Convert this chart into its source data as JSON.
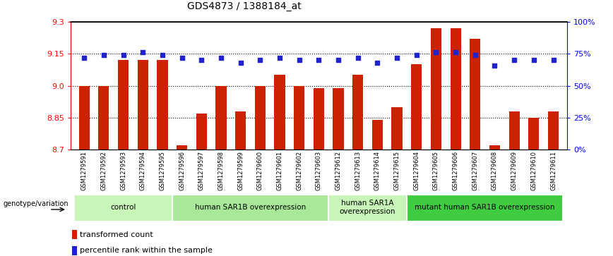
{
  "title": "GDS4873 / 1388184_at",
  "samples": [
    "GSM1279591",
    "GSM1279592",
    "GSM1279593",
    "GSM1279594",
    "GSM1279595",
    "GSM1279596",
    "GSM1279597",
    "GSM1279598",
    "GSM1279599",
    "GSM1279600",
    "GSM1279601",
    "GSM1279602",
    "GSM1279603",
    "GSM1279612",
    "GSM1279613",
    "GSM1279614",
    "GSM1279615",
    "GSM1279604",
    "GSM1279605",
    "GSM1279606",
    "GSM1279607",
    "GSM1279608",
    "GSM1279609",
    "GSM1279610",
    "GSM1279611"
  ],
  "bar_values": [
    9.0,
    9.0,
    9.12,
    9.12,
    9.12,
    8.72,
    8.87,
    9.0,
    8.88,
    9.0,
    9.05,
    9.0,
    8.99,
    8.99,
    9.05,
    8.84,
    8.9,
    9.1,
    9.27,
    9.27,
    9.22,
    8.72,
    8.88,
    8.85,
    8.88
  ],
  "percentile_values": [
    72,
    74,
    74,
    76,
    74,
    72,
    70,
    72,
    68,
    70,
    72,
    70,
    70,
    70,
    72,
    68,
    72,
    74,
    76,
    76,
    74,
    66,
    70,
    70,
    70
  ],
  "groups": [
    {
      "label": "control",
      "start": 0,
      "end": 5,
      "color": "#c8f5b8"
    },
    {
      "label": "human SAR1B overexpression",
      "start": 5,
      "end": 13,
      "color": "#a8e898"
    },
    {
      "label": "human SAR1A\noverexpression",
      "start": 13,
      "end": 17,
      "color": "#c8f5b8"
    },
    {
      "label": "mutant human SAR1B overexpression",
      "start": 17,
      "end": 25,
      "color": "#40cc40"
    }
  ],
  "ylim": [
    8.7,
    9.3
  ],
  "yticks": [
    8.7,
    8.85,
    9.0,
    9.15,
    9.3
  ],
  "y2ticks_pct": [
    0,
    25,
    50,
    75,
    100
  ],
  "hlines": [
    8.85,
    9.0,
    9.15
  ],
  "bar_color": "#cc2200",
  "dot_color": "#2222cc",
  "bar_width": 0.55
}
